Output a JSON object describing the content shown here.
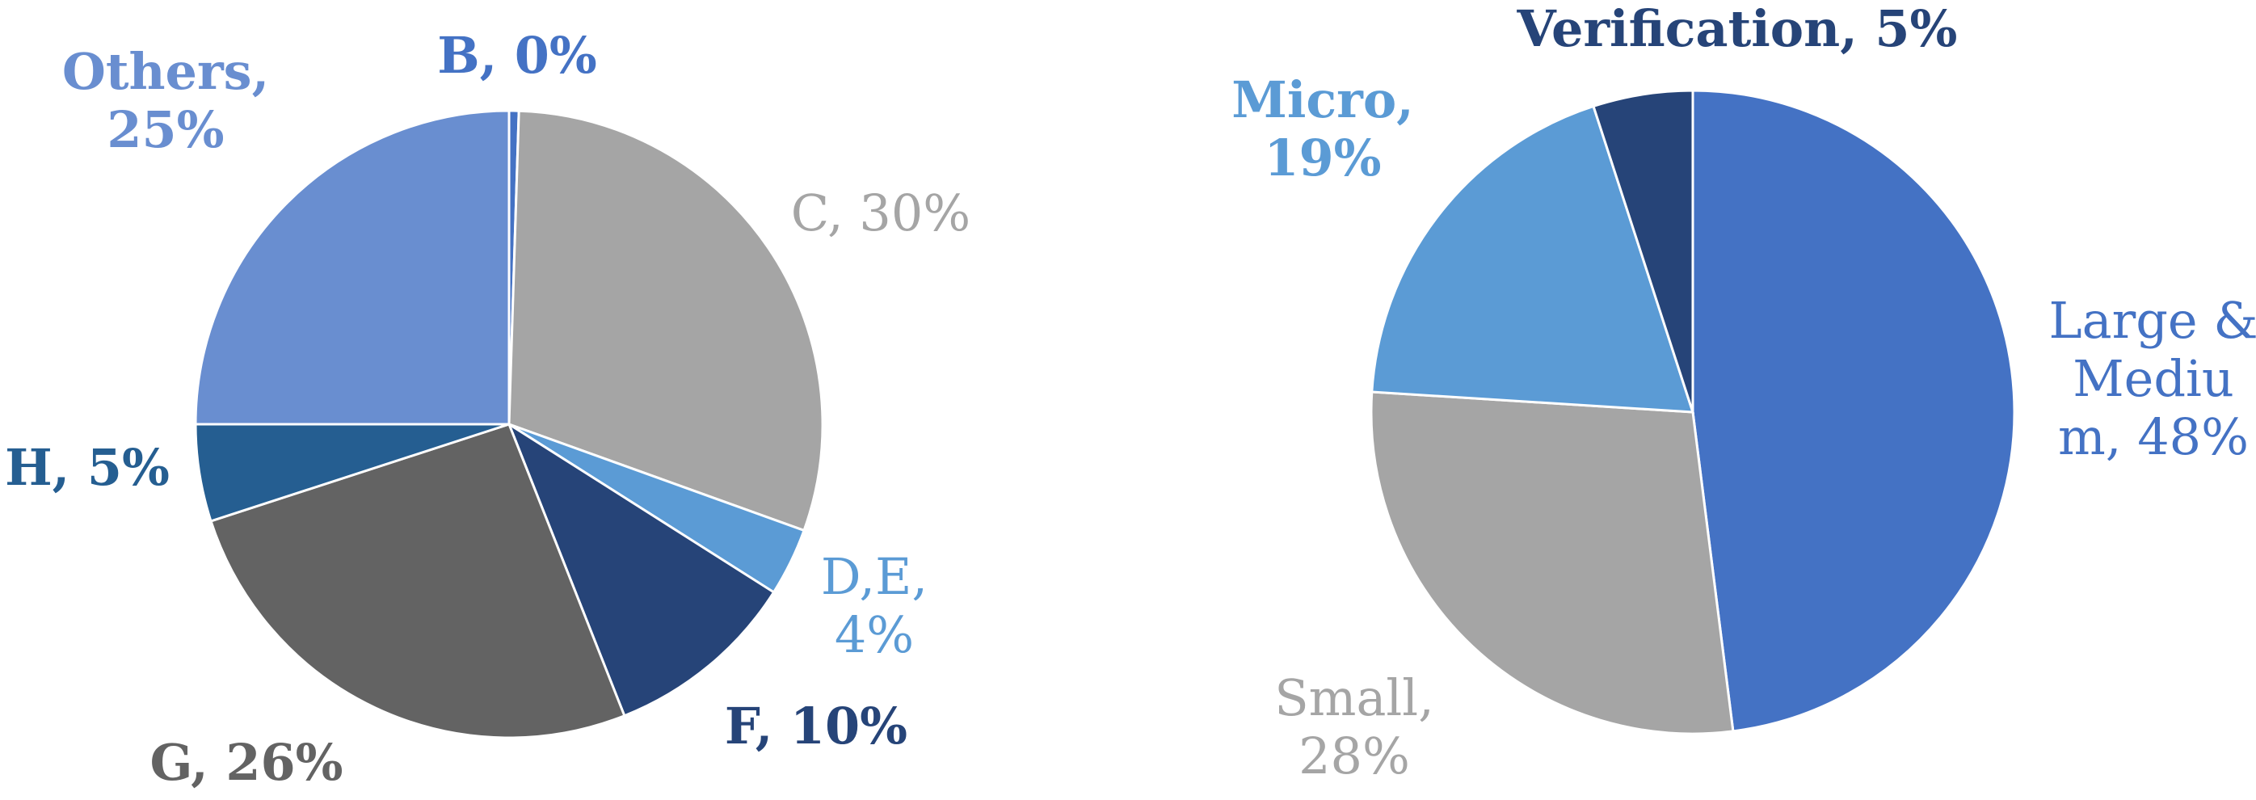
{
  "chart_data": [
    {
      "type": "pie",
      "categories": [
        "B",
        "C",
        "D,E",
        "F",
        "G",
        "H",
        "Others"
      ],
      "values": [
        0.5,
        30,
        3.5,
        10,
        26,
        5,
        25
      ],
      "data_labels": [
        [
          "B, 0%"
        ],
        [
          "C, 30%"
        ],
        [
          "D,E,",
          "4%"
        ],
        [
          "F, 10%"
        ],
        [
          "G, 26%"
        ],
        [
          "H, 5%"
        ],
        [
          "Others,",
          "25%"
        ]
      ],
      "colors": [
        "#4472C4",
        "#A5A5A5",
        "#5B9BD5",
        "#264478",
        "#636363",
        "#255E91",
        "#698ED0"
      ],
      "label_colors": [
        "#4472C4",
        "#A5A5A5",
        "#5B9BD5",
        "#264478",
        "#636363",
        "#255E91",
        "#698ED0"
      ],
      "label_weights": [
        "bold",
        "normal",
        "normal",
        "bold",
        "bold",
        "bold",
        "bold"
      ],
      "start_angle": "top, clockwise",
      "legend": "none"
    },
    {
      "type": "pie",
      "categories": [
        "Large & Medium",
        "Small",
        "Micro",
        "Verification"
      ],
      "values": [
        48,
        28,
        19,
        5
      ],
      "data_labels": [
        [
          "Large &",
          "Mediu",
          "m, 48%"
        ],
        [
          "Small,",
          "28%"
        ],
        [
          "Micro,",
          "19%"
        ],
        [
          "Verification, 5%"
        ]
      ],
      "colors": [
        "#4472C4",
        "#A5A5A5",
        "#5B9BD5",
        "#264478"
      ],
      "label_colors": [
        "#4472C4",
        "#A5A5A5",
        "#5B9BD5",
        "#264478"
      ],
      "label_weights": [
        "normal",
        "normal",
        "bold",
        "bold"
      ],
      "start_angle": "top, clockwise",
      "legend": "none"
    }
  ]
}
